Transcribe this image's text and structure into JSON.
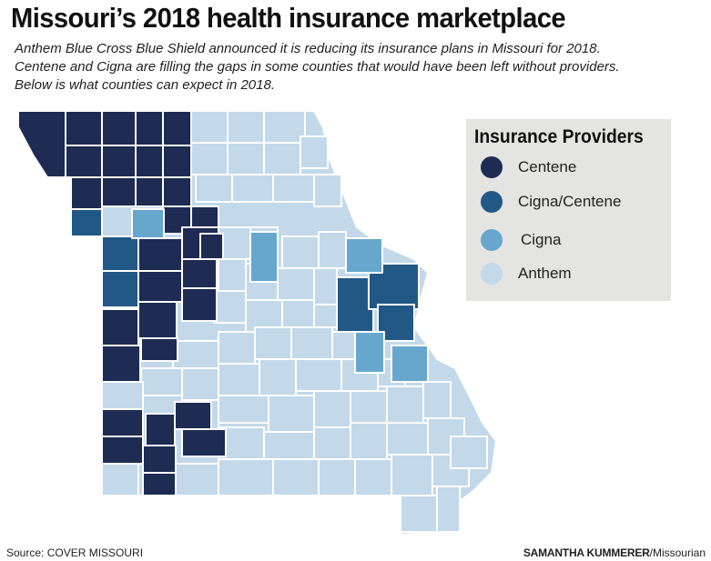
{
  "title": "Missouri’s 2018 health insurance marketplace",
  "intro": [
    "Anthem Blue Cross Blue Shield announced it is reducing its insurance plans in Missouri for 2018.",
    "Centene and Cigna are filling the gaps in some counties that would have been left without providers.",
    "Below is what counties can expect in 2018."
  ],
  "legend": {
    "title": "Insurance Providers",
    "items": [
      {
        "key": "centene",
        "label": "Centene",
        "color": "#1e2b52"
      },
      {
        "key": "cigna-centene",
        "label": "Cigna/Centene",
        "color": "#225886"
      },
      {
        "key": "cigna",
        "label": "Cigna",
        "color": "#67a7cd"
      },
      {
        "key": "anthem",
        "label": "Anthem",
        "color": "#c3d9ea"
      }
    ]
  },
  "map": {
    "county_counts": {
      "centene": 31,
      "cigna-centene": 6,
      "cigna": 5,
      "anthem": 73
    }
  },
  "footer": {
    "source": "Source: COVER MISSOURI",
    "credit_name": "SAMANTHA KUMMERER",
    "credit_outlet": "/Missourian"
  }
}
